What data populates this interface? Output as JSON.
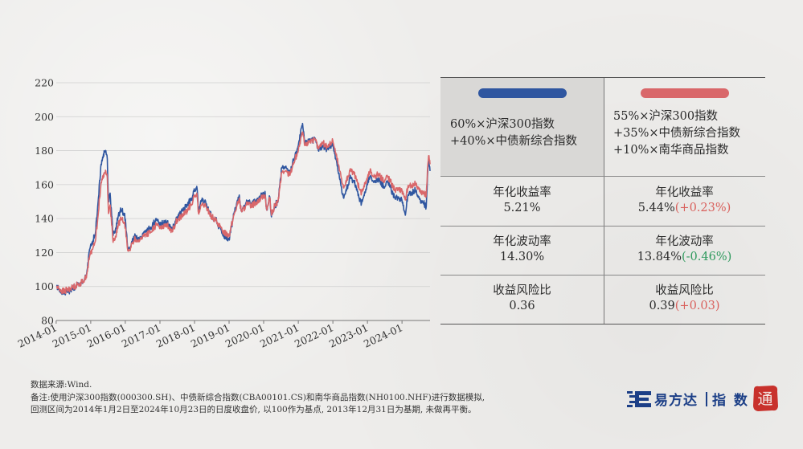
{
  "chart_data": {
    "type": "line",
    "x_ticks": [
      "2014-01",
      "2015-01",
      "2016-01",
      "2017-01",
      "2018-01",
      "2019-01",
      "2020-01",
      "2021-01",
      "2022-01",
      "2023-01",
      "2024-01"
    ],
    "y_ticks": [
      80,
      100,
      120,
      140,
      160,
      180,
      200,
      220
    ],
    "ylim": [
      80,
      220
    ],
    "xlim": [
      "2014-01-02",
      "2024-10-23"
    ],
    "grid": "horizontal",
    "series": [
      {
        "color": "#2f56a0",
        "points": [
          [
            "2014-01-02",
            100
          ],
          [
            "2014-03-15",
            96
          ],
          [
            "2014-06-01",
            98
          ],
          [
            "2014-08-15",
            101
          ],
          [
            "2014-10-15",
            103
          ],
          [
            "2014-11-20",
            108
          ],
          [
            "2014-12-20",
            122
          ],
          [
            "2015-02-15",
            130
          ],
          [
            "2015-03-20",
            150
          ],
          [
            "2015-04-20",
            172
          ],
          [
            "2015-05-15",
            178
          ],
          [
            "2015-06-10",
            180
          ],
          [
            "2015-06-25",
            175
          ],
          [
            "2015-07-08",
            150
          ],
          [
            "2015-07-25",
            155
          ],
          [
            "2015-08-25",
            130
          ],
          [
            "2015-09-15",
            132
          ],
          [
            "2015-10-20",
            142
          ],
          [
            "2015-11-20",
            145
          ],
          [
            "2015-12-25",
            143
          ],
          [
            "2016-01-28",
            122
          ],
          [
            "2016-03-01",
            124
          ],
          [
            "2016-04-15",
            130
          ],
          [
            "2016-06-01",
            128
          ],
          [
            "2016-08-01",
            133
          ],
          [
            "2016-10-01",
            134
          ],
          [
            "2016-11-25",
            140
          ],
          [
            "2017-01-01",
            136
          ],
          [
            "2017-03-01",
            139
          ],
          [
            "2017-05-10",
            134
          ],
          [
            "2017-07-01",
            141
          ],
          [
            "2017-09-01",
            145
          ],
          [
            "2017-11-15",
            150
          ],
          [
            "2018-01-25",
            159
          ],
          [
            "2018-02-12",
            145
          ],
          [
            "2018-03-15",
            151
          ],
          [
            "2018-05-01",
            149
          ],
          [
            "2018-06-30",
            141
          ],
          [
            "2018-08-15",
            139
          ],
          [
            "2018-10-20",
            131
          ],
          [
            "2018-12-31",
            128
          ],
          [
            "2019-02-25",
            144
          ],
          [
            "2019-04-15",
            153
          ],
          [
            "2019-05-15",
            144
          ],
          [
            "2019-07-01",
            149
          ],
          [
            "2019-09-01",
            149
          ],
          [
            "2019-11-01",
            151
          ],
          [
            "2020-01-15",
            156
          ],
          [
            "2020-02-03",
            145
          ],
          [
            "2020-03-05",
            153
          ],
          [
            "2020-03-23",
            141
          ],
          [
            "2020-05-01",
            148
          ],
          [
            "2020-06-01",
            150
          ],
          [
            "2020-07-10",
            170
          ],
          [
            "2020-08-15",
            170
          ],
          [
            "2020-10-01",
            167
          ],
          [
            "2020-11-15",
            175
          ],
          [
            "2021-01-01",
            183
          ],
          [
            "2021-02-15",
            196
          ],
          [
            "2021-03-10",
            184
          ],
          [
            "2021-05-01",
            187
          ],
          [
            "2021-07-01",
            186
          ],
          [
            "2021-08-01",
            180
          ],
          [
            "2021-09-15",
            183
          ],
          [
            "2021-11-01",
            181
          ],
          [
            "2021-12-31",
            184
          ],
          [
            "2022-03-15",
            163
          ],
          [
            "2022-04-26",
            152
          ],
          [
            "2022-06-30",
            164
          ],
          [
            "2022-08-15",
            161
          ],
          [
            "2022-10-31",
            149
          ],
          [
            "2023-01-28",
            165
          ],
          [
            "2023-03-01",
            162
          ],
          [
            "2023-05-01",
            163
          ],
          [
            "2023-06-30",
            158
          ],
          [
            "2023-08-01",
            162
          ],
          [
            "2023-10-20",
            152
          ],
          [
            "2023-12-31",
            151
          ],
          [
            "2024-02-05",
            142
          ],
          [
            "2024-03-01",
            153
          ],
          [
            "2024-05-20",
            157
          ],
          [
            "2024-07-01",
            152
          ],
          [
            "2024-09-13",
            147
          ],
          [
            "2024-09-30",
            169
          ],
          [
            "2024-10-08",
            174
          ],
          [
            "2024-10-23",
            168
          ]
        ]
      },
      {
        "color": "#d9676a",
        "points": [
          [
            "2014-01-02",
            100
          ],
          [
            "2014-03-15",
            97
          ],
          [
            "2014-06-01",
            99
          ],
          [
            "2014-08-15",
            101
          ],
          [
            "2014-10-15",
            103
          ],
          [
            "2014-11-20",
            107
          ],
          [
            "2014-12-20",
            118
          ],
          [
            "2015-02-15",
            126
          ],
          [
            "2015-03-20",
            142
          ],
          [
            "2015-04-20",
            161
          ],
          [
            "2015-05-15",
            166
          ],
          [
            "2015-06-10",
            168
          ],
          [
            "2015-06-25",
            164
          ],
          [
            "2015-07-08",
            143
          ],
          [
            "2015-07-25",
            148
          ],
          [
            "2015-08-25",
            126
          ],
          [
            "2015-09-15",
            128
          ],
          [
            "2015-10-20",
            137
          ],
          [
            "2015-11-20",
            140
          ],
          [
            "2015-12-25",
            138
          ],
          [
            "2016-01-28",
            121
          ],
          [
            "2016-03-01",
            123
          ],
          [
            "2016-04-15",
            128
          ],
          [
            "2016-06-01",
            127
          ],
          [
            "2016-08-01",
            131
          ],
          [
            "2016-10-01",
            132
          ],
          [
            "2016-11-25",
            137
          ],
          [
            "2017-01-01",
            134
          ],
          [
            "2017-03-01",
            137
          ],
          [
            "2017-05-10",
            133
          ],
          [
            "2017-07-01",
            139
          ],
          [
            "2017-09-01",
            142
          ],
          [
            "2017-11-15",
            147
          ],
          [
            "2018-01-25",
            155
          ],
          [
            "2018-02-12",
            143
          ],
          [
            "2018-03-15",
            148
          ],
          [
            "2018-05-01",
            147
          ],
          [
            "2018-06-30",
            141
          ],
          [
            "2018-08-15",
            139
          ],
          [
            "2018-10-20",
            133
          ],
          [
            "2018-12-31",
            130
          ],
          [
            "2019-02-25",
            143
          ],
          [
            "2019-04-15",
            151
          ],
          [
            "2019-05-15",
            144
          ],
          [
            "2019-07-01",
            148
          ],
          [
            "2019-09-01",
            148
          ],
          [
            "2019-11-01",
            150
          ],
          [
            "2020-01-15",
            154
          ],
          [
            "2020-02-03",
            145
          ],
          [
            "2020-03-05",
            152
          ],
          [
            "2020-03-23",
            142
          ],
          [
            "2020-05-01",
            148
          ],
          [
            "2020-06-01",
            150
          ],
          [
            "2020-07-10",
            167
          ],
          [
            "2020-08-15",
            168
          ],
          [
            "2020-10-01",
            166
          ],
          [
            "2020-11-15",
            173
          ],
          [
            "2021-01-01",
            180
          ],
          [
            "2021-02-15",
            191
          ],
          [
            "2021-03-10",
            183
          ],
          [
            "2021-05-01",
            186
          ],
          [
            "2021-07-01",
            186
          ],
          [
            "2021-08-01",
            181
          ],
          [
            "2021-09-15",
            185
          ],
          [
            "2021-11-01",
            182
          ],
          [
            "2021-12-31",
            186
          ],
          [
            "2022-03-15",
            168
          ],
          [
            "2022-04-26",
            158
          ],
          [
            "2022-06-30",
            168
          ],
          [
            "2022-08-15",
            166
          ],
          [
            "2022-10-31",
            155
          ],
          [
            "2023-01-28",
            168
          ],
          [
            "2023-03-01",
            165
          ],
          [
            "2023-05-01",
            166
          ],
          [
            "2023-06-30",
            162
          ],
          [
            "2023-08-01",
            165
          ],
          [
            "2023-10-20",
            157
          ],
          [
            "2023-12-31",
            157
          ],
          [
            "2024-02-05",
            151
          ],
          [
            "2024-03-01",
            158
          ],
          [
            "2024-05-20",
            161
          ],
          [
            "2024-07-01",
            157
          ],
          [
            "2024-09-13",
            154
          ],
          [
            "2024-09-30",
            172
          ],
          [
            "2024-10-08",
            177
          ],
          [
            "2024-10-23",
            172
          ]
        ]
      }
    ]
  },
  "comparison": {
    "columns": [
      {
        "color": "#2f56a0",
        "head_lines": [
          "60%×沪深300指数",
          "+40%×中债新综合指数"
        ],
        "metrics": [
          {
            "label": "年化收益率",
            "value": "5.21%",
            "delta": ""
          },
          {
            "label": "年化波动率",
            "value": "14.30%",
            "delta": ""
          },
          {
            "label": "收益风险比",
            "value": "0.36",
            "delta": ""
          }
        ]
      },
      {
        "color": "#d9676a",
        "head_lines": [
          "55%×沪深300指数",
          "+35%×中债新综合指数",
          "+10%×南华商品指数"
        ],
        "metrics": [
          {
            "label": "年化收益率",
            "value": "5.44%",
            "delta": "(+0.23%)"
          },
          {
            "label": "年化波动率",
            "value": "13.84%",
            "delta": "(-0.46%)"
          },
          {
            "label": "收益风险比",
            "value": "0.39",
            "delta": "(+0.03)"
          }
        ]
      }
    ]
  },
  "notes": {
    "line1": "数据来源:Wind.",
    "line2": "备注:使用沪深300指数(000300.SH)、中债新综合指数(CBA00101.CS)和南华商品指数(NH0100.NHF)进行数据模拟,",
    "line3": "回测区间为2014年1月2日至2024年10月23日的日度收盘价, 以100作为基点, 2013年12月31日为基期, 未做再平衡。"
  },
  "brand": {
    "name": "易方达",
    "sub": "指 数",
    "seal": "通",
    "logo_icon": "efund-logo-icon",
    "primary_color": "#1c3f87",
    "seal_color": "#c8312c"
  }
}
